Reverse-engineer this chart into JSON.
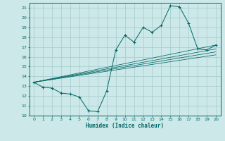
{
  "title": "",
  "xlabel": "Humidex (Indice chaleur)",
  "bg_color": "#cce8e8",
  "grid_color": "#aacfcf",
  "line_color": "#006666",
  "xlim": [
    -0.5,
    20.5
  ],
  "ylim": [
    10,
    21.5
  ],
  "xticks": [
    0,
    1,
    2,
    3,
    4,
    5,
    6,
    7,
    8,
    9,
    10,
    11,
    12,
    13,
    14,
    15,
    16,
    17,
    18,
    19,
    20
  ],
  "yticks": [
    10,
    11,
    12,
    13,
    14,
    15,
    16,
    17,
    18,
    19,
    20,
    21
  ],
  "curve_x": [
    0,
    1,
    2,
    3,
    4,
    5,
    6,
    7,
    8,
    9,
    10,
    11,
    12,
    13,
    14,
    15,
    16,
    17,
    18,
    19,
    20
  ],
  "curve_y": [
    13.4,
    12.9,
    12.8,
    12.3,
    12.2,
    11.9,
    10.5,
    10.4,
    12.5,
    16.7,
    18.2,
    17.5,
    19.0,
    18.5,
    19.2,
    21.2,
    21.1,
    19.4,
    16.8,
    16.7,
    17.2
  ],
  "line1_x": [
    0,
    20
  ],
  "line1_y": [
    13.4,
    17.2
  ],
  "line2_x": [
    0,
    20
  ],
  "line2_y": [
    13.4,
    16.8
  ],
  "line3_x": [
    0,
    20
  ],
  "line3_y": [
    13.4,
    16.5
  ],
  "line4_x": [
    0,
    20
  ],
  "line4_y": [
    13.4,
    16.2
  ]
}
